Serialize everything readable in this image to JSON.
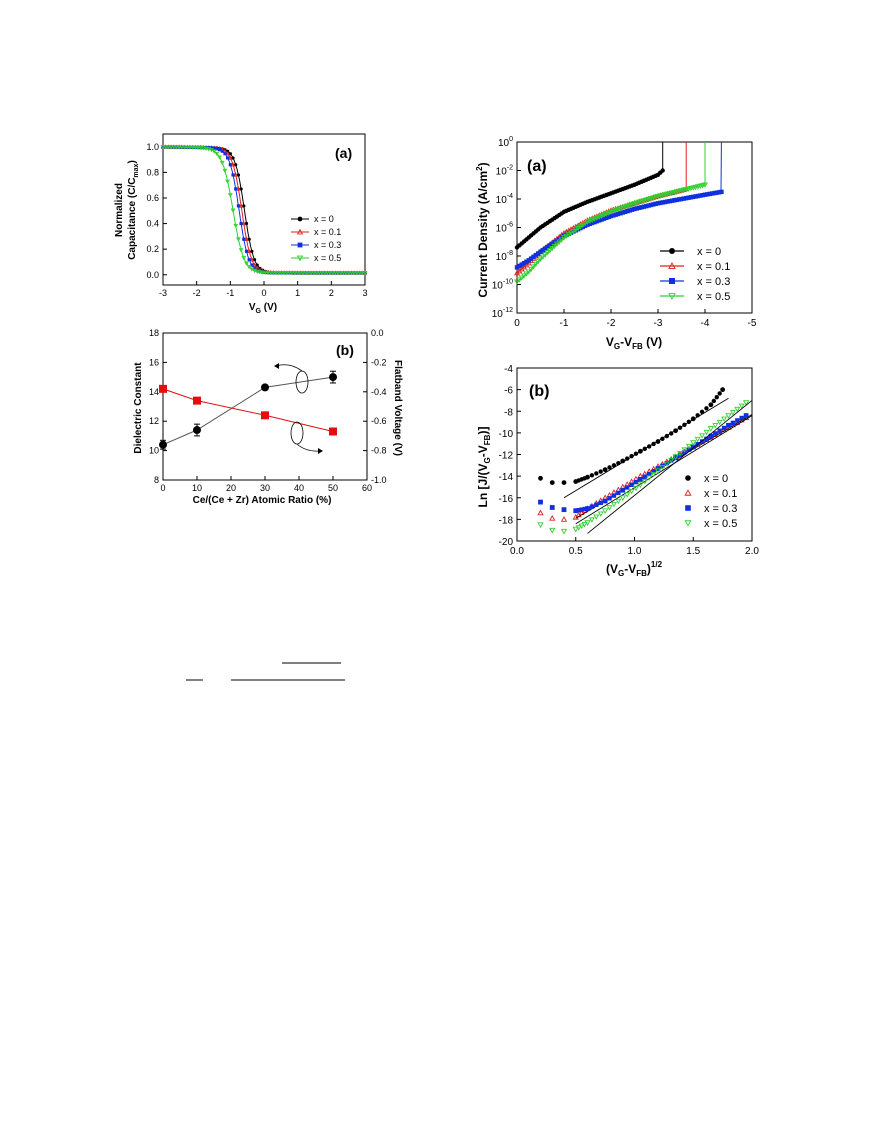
{
  "chart_data": [
    {
      "panel": "(a)",
      "type": "line",
      "xlabel_main": "V",
      "xlabel_sub": "G",
      "xlabel_tail": " (V)",
      "ylabel_line1": "Normalized",
      "ylabel_line2_main": "Capacitance (C/C",
      "ylabel_line2_sub": "max",
      "ylabel_line2_tail": ")",
      "xlim": [
        -3,
        3
      ],
      "ylim": [
        -0.08,
        1.1
      ],
      "x_ticks": [
        "-3",
        "-2",
        "-1",
        "0",
        "1",
        "2",
        "3"
      ],
      "y_ticks": [
        "0.0",
        "0.2",
        "0.4",
        "0.6",
        "0.8",
        "1.0"
      ],
      "legend_position": "right",
      "series": [
        {
          "name": "x = 0",
          "color": "#000000",
          "marker": "filled-circle",
          "midpoint": -0.58,
          "width": 0.14
        },
        {
          "name": "x = 0.1",
          "color": "#e02020",
          "marker": "open-triangle-up",
          "midpoint": -0.66,
          "width": 0.14
        },
        {
          "name": "x = 0.3",
          "color": "#1030e0",
          "marker": "filled-square",
          "midpoint": -0.74,
          "width": 0.14
        },
        {
          "name": "x = 0.5",
          "color": "#30d030",
          "marker": "open-triangle-down",
          "midpoint": -0.92,
          "width": 0.16
        }
      ]
    },
    {
      "panel": "(b)",
      "type": "scatter",
      "xlabel": "Ce/(Ce + Zr) Atomic Ratio (%)",
      "ylabel_left": "Dielectric Constant",
      "ylabel_right": "Flatband Voltage (V)",
      "xlim": [
        0,
        60
      ],
      "ylim_left": [
        8,
        18
      ],
      "ylim_right": [
        -1.0,
        0.0
      ],
      "x_ticks": [
        "0",
        "10",
        "20",
        "30",
        "40",
        "50",
        "60"
      ],
      "y_ticks_left": [
        "8",
        "10",
        "12",
        "14",
        "16",
        "18"
      ],
      "y_ticks_right": [
        "0.0",
        "-0.2",
        "-0.4",
        "-0.6",
        "-0.8",
        "-1.0"
      ],
      "series": [
        {
          "name": "Dielectric Constant",
          "axis": "left",
          "color": "#000000",
          "marker": "filled-circle",
          "x": [
            0,
            10,
            30,
            50
          ],
          "y": [
            10.4,
            11.4,
            14.3,
            15.0
          ],
          "err": [
            0.3,
            0.4,
            0.0,
            0.4
          ]
        },
        {
          "name": "Flatband Voltage",
          "axis": "right",
          "color": "#e01010",
          "marker": "filled-square",
          "x": [
            0,
            10,
            30,
            50
          ],
          "y": [
            -0.38,
            -0.46,
            -0.56,
            -0.67
          ]
        }
      ]
    },
    {
      "panel": "(a)",
      "type": "line",
      "xlabel_main": "V",
      "xlabel_sub1": "G",
      "xlabel_mid": "-V",
      "xlabel_sub2": "FB",
      "xlabel_tail": " (V)",
      "ylabel_main": "Current Density (A/cm",
      "ylabel_sup": "2",
      "ylabel_tail": ")",
      "xlim": [
        0,
        -5
      ],
      "ylim_log": [
        -12,
        0
      ],
      "x_ticks": [
        "0",
        "-1",
        "-2",
        "-3",
        "-4",
        "-5"
      ],
      "y_tick_exponents": [
        "0",
        "-2",
        "-4",
        "-6",
        "-8",
        "-10",
        "-12"
      ],
      "y_tick_base": "10",
      "legend_position": "lower right",
      "series": [
        {
          "name": "x = 0",
          "color": "#000000",
          "marker": "filled-circle",
          "x": [
            0,
            -0.25,
            -0.5,
            -1,
            -1.5,
            -2,
            -2.5,
            -3,
            -3.1
          ],
          "logy": [
            -7.4,
            -6.7,
            -6.0,
            -4.9,
            -4.2,
            -3.6,
            -3.0,
            -2.3,
            -2.0
          ],
          "breakdown": -3.1
        },
        {
          "name": "x = 0.1",
          "color": "#e02020",
          "marker": "open-triangle-up",
          "x": [
            0,
            -0.25,
            -0.5,
            -1,
            -1.5,
            -2,
            -2.5,
            -3,
            -3.5,
            -3.6
          ],
          "logy": [
            -9.2,
            -8.5,
            -7.7,
            -6.4,
            -5.5,
            -4.8,
            -4.3,
            -3.8,
            -3.4,
            -3.3
          ],
          "breakdown": -3.6
        },
        {
          "name": "x = 0.3",
          "color": "#1030e0",
          "marker": "filled-square",
          "x": [
            0,
            -0.25,
            -0.5,
            -1,
            -1.5,
            -2,
            -2.5,
            -3,
            -3.5,
            -4,
            -4.35
          ],
          "logy": [
            -8.8,
            -8.3,
            -7.7,
            -6.6,
            -5.8,
            -5.2,
            -4.7,
            -4.3,
            -4.0,
            -3.7,
            -3.5
          ],
          "breakdown": -4.35
        },
        {
          "name": "x = 0.5",
          "color": "#30d030",
          "marker": "open-triangle-down",
          "x": [
            0,
            -0.25,
            -0.5,
            -1,
            -1.5,
            -2,
            -2.5,
            -3,
            -3.5,
            -4
          ],
          "logy": [
            -9.8,
            -9.1,
            -8.2,
            -6.7,
            -5.6,
            -4.9,
            -4.3,
            -3.8,
            -3.4,
            -3.0
          ],
          "breakdown": -4.0
        }
      ]
    },
    {
      "panel": "(b)",
      "type": "scatter",
      "xlabel_main": "(V",
      "xlabel_sub1": "G",
      "xlabel_mid": "-V",
      "xlabel_sub2": "FB",
      "xlabel_tail": ")",
      "xlabel_sup": "1/2",
      "ylabel_main": "Ln [J/(V",
      "ylabel_sub1": "G",
      "ylabel_mid": "-V",
      "ylabel_sub2": "FB",
      "ylabel_tail": ")]",
      "xlim": [
        0,
        2.0
      ],
      "ylim": [
        -20,
        -4
      ],
      "x_ticks": [
        "0.0",
        "0.5",
        "1.0",
        "1.5",
        "2.0"
      ],
      "y_ticks": [
        "-20",
        "-18",
        "-16",
        "-14",
        "-12",
        "-10",
        "-8",
        "-6",
        "-4"
      ],
      "legend_position": "lower right",
      "series": [
        {
          "name": "x = 0",
          "color": "#000000",
          "marker": "filled-circle",
          "x": [
            0.2,
            0.3,
            0.4,
            0.5,
            0.6,
            0.75,
            0.9,
            1.05,
            1.2,
            1.35,
            1.5,
            1.65,
            1.75
          ],
          "y": [
            -14.2,
            -14.6,
            -14.6,
            -14.5,
            -14.1,
            -13.4,
            -12.6,
            -11.7,
            -10.8,
            -9.8,
            -8.7,
            -7.4,
            -6.0
          ],
          "fit": [
            [
              0.4,
              -16.0
            ],
            [
              1.8,
              -6.8
            ]
          ]
        },
        {
          "name": "x = 0.1",
          "color": "#e02020",
          "marker": "open-triangle-up",
          "x": [
            0.2,
            0.3,
            0.4,
            0.5,
            0.6,
            0.75,
            0.9,
            1.05,
            1.2,
            1.35,
            1.5,
            1.65,
            1.8,
            1.95
          ],
          "y": [
            -17.4,
            -17.9,
            -18.0,
            -17.8,
            -17.0,
            -16.0,
            -15.0,
            -14.0,
            -13.1,
            -12.2,
            -11.3,
            -10.4,
            -9.5,
            -8.6
          ],
          "fit": [
            [
              0.5,
              -17.9
            ],
            [
              2.0,
              -8.3
            ]
          ]
        },
        {
          "name": "x = 0.3",
          "color": "#1030e0",
          "marker": "filled-square",
          "x": [
            0.2,
            0.3,
            0.4,
            0.5,
            0.6,
            0.75,
            0.9,
            1.05,
            1.2,
            1.35,
            1.5,
            1.65,
            1.8,
            1.95
          ],
          "y": [
            -16.4,
            -16.9,
            -17.1,
            -17.2,
            -17.0,
            -16.3,
            -15.3,
            -14.3,
            -13.3,
            -12.3,
            -11.3,
            -10.3,
            -9.3,
            -8.4
          ],
          "fit": [
            [
              0.5,
              -18.4
            ],
            [
              2.0,
              -8.4
            ]
          ]
        },
        {
          "name": "x = 0.5",
          "color": "#30d030",
          "marker": "open-triangle-down",
          "x": [
            0.2,
            0.3,
            0.4,
            0.5,
            0.6,
            0.75,
            0.9,
            1.05,
            1.2,
            1.35,
            1.5,
            1.65,
            1.8,
            1.95
          ],
          "y": [
            -18.5,
            -19.0,
            -19.1,
            -18.9,
            -18.3,
            -17.2,
            -16.0,
            -14.8,
            -13.5,
            -12.2,
            -10.9,
            -9.6,
            -8.4,
            -7.2
          ],
          "fit": [
            [
              0.6,
              -19.3
            ],
            [
              2.0,
              -7.0
            ]
          ]
        }
      ]
    }
  ]
}
